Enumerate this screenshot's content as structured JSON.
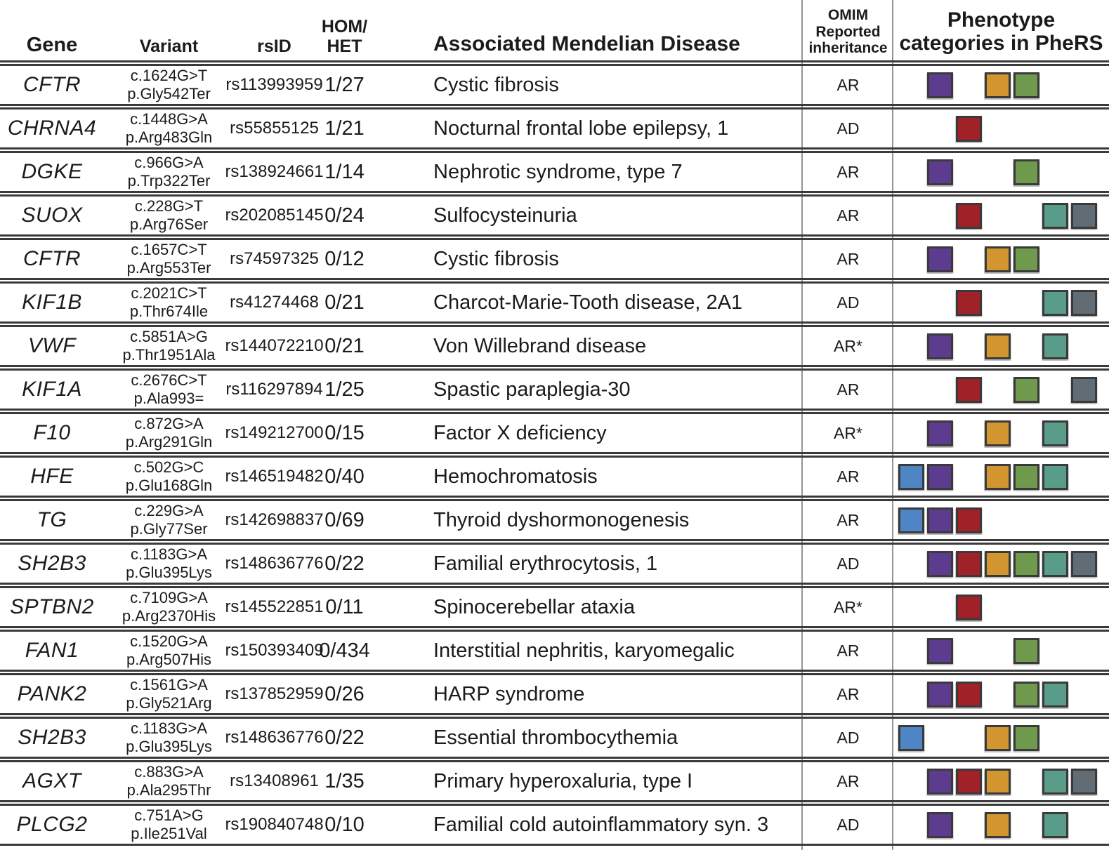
{
  "header": {
    "gene": "Gene",
    "variant": "Variant",
    "rsid": "rsID",
    "hom_het": "HOM/\nHET",
    "disease": "Associated Mendelian Disease",
    "omim": "OMIM\nReported\ninheritance",
    "phers": "Phenotype\ncategories in PheRS"
  },
  "category_slots": [
    "blue",
    "purple",
    "red",
    "orange",
    "green",
    "teal",
    "gray"
  ],
  "colors": {
    "blue": "#4f85c5",
    "purple": "#5d3b8e",
    "red": "#a02228",
    "orange": "#d2952f",
    "green": "#6f9a4e",
    "teal": "#5a9c8a",
    "gray": "#626c75",
    "row_border": "#3a3a3a",
    "divider": "#949494",
    "square_border": "#3a3a3a"
  },
  "rows": [
    {
      "gene": "CFTR",
      "variant_cdna": "c.1624G>T",
      "variant_protein": "p.Gly542Ter",
      "rsid": "rs113993959",
      "hom_het": "1/27",
      "disease": "Cystic fibrosis",
      "inheritance": "AR",
      "categories": [
        "purple",
        "orange",
        "green"
      ]
    },
    {
      "gene": "CHRNA4",
      "variant_cdna": "c.1448G>A",
      "variant_protein": "p.Arg483Gln",
      "rsid": "rs55855125",
      "hom_het": "1/21",
      "disease": "Nocturnal frontal lobe epilepsy, 1",
      "inheritance": "AD",
      "categories": [
        "red"
      ]
    },
    {
      "gene": "DGKE",
      "variant_cdna": "c.966G>A",
      "variant_protein": "p.Trp322Ter",
      "rsid": "rs138924661",
      "hom_het": "1/14",
      "disease": "Nephrotic syndrome, type 7",
      "inheritance": "AR",
      "categories": [
        "purple",
        "green"
      ]
    },
    {
      "gene": "SUOX",
      "variant_cdna": "c.228G>T",
      "variant_protein": "p.Arg76Ser",
      "rsid": "rs202085145",
      "hom_het": "0/24",
      "disease": "Sulfocysteinuria",
      "inheritance": "AR",
      "categories": [
        "red",
        "teal",
        "gray"
      ]
    },
    {
      "gene": "CFTR",
      "variant_cdna": "c.1657C>T",
      "variant_protein": "p.Arg553Ter",
      "rsid": "rs74597325",
      "hom_het": "0/12",
      "disease": "Cystic fibrosis",
      "inheritance": "AR",
      "categories": [
        "purple",
        "orange",
        "green"
      ]
    },
    {
      "gene": "KIF1B",
      "variant_cdna": "c.2021C>T",
      "variant_protein": "p.Thr674Ile",
      "rsid": "rs41274468",
      "hom_het": "0/21",
      "disease": "Charcot-Marie-Tooth disease, 2A1",
      "inheritance": "AD",
      "categories": [
        "red",
        "teal",
        "gray"
      ]
    },
    {
      "gene": "VWF",
      "variant_cdna": "c.5851A>G",
      "variant_protein": "p.Thr1951Ala",
      "rsid": "rs144072210",
      "hom_het": "0/21",
      "disease": "Von Willebrand disease",
      "inheritance": "AR*",
      "categories": [
        "purple",
        "orange",
        "teal"
      ]
    },
    {
      "gene": "KIF1A",
      "variant_cdna": "c.2676C>T",
      "variant_protein": "p.Ala993=",
      "rsid": "rs116297894",
      "hom_het": "1/25",
      "disease": "Spastic paraplegia-30",
      "inheritance": "AR",
      "categories": [
        "red",
        "green",
        "gray"
      ]
    },
    {
      "gene": "F10",
      "variant_cdna": "c.872G>A",
      "variant_protein": "p.Arg291Gln",
      "rsid": "rs149212700",
      "hom_het": "0/15",
      "disease": "Factor X deficiency",
      "inheritance": "AR*",
      "categories": [
        "purple",
        "orange",
        "teal"
      ]
    },
    {
      "gene": "HFE",
      "variant_cdna": "c.502G>C",
      "variant_protein": "p.Glu168Gln",
      "rsid": "rs146519482",
      "hom_het": "0/40",
      "disease": "Hemochromatosis",
      "inheritance": "AR",
      "categories": [
        "blue",
        "purple",
        "orange",
        "green",
        "teal"
      ]
    },
    {
      "gene": "TG",
      "variant_cdna": "c.229G>A",
      "variant_protein": "p.Gly77Ser",
      "rsid": "rs142698837",
      "hom_het": "0/69",
      "disease": "Thyroid dyshormonogenesis",
      "inheritance": "AR",
      "categories": [
        "blue",
        "purple",
        "red"
      ]
    },
    {
      "gene": "SH2B3",
      "variant_cdna": "c.1183G>A",
      "variant_protein": "p.Glu395Lys",
      "rsid": "rs148636776",
      "hom_het": "0/22",
      "disease": "Familial erythrocytosis, 1",
      "inheritance": "AD",
      "categories": [
        "purple",
        "red",
        "orange",
        "green",
        "teal",
        "gray"
      ]
    },
    {
      "gene": "SPTBN2",
      "variant_cdna": "c.7109G>A",
      "variant_protein": "p.Arg2370His",
      "rsid": "rs145522851",
      "hom_het": "0/11",
      "disease": "Spinocerebellar ataxia",
      "inheritance": "AR*",
      "categories": [
        "red"
      ]
    },
    {
      "gene": "FAN1",
      "variant_cdna": "c.1520G>A",
      "variant_protein": "p.Arg507His",
      "rsid": "rs150393409",
      "hom_het": "0/434",
      "disease": "Interstitial nephritis, karyomegalic",
      "inheritance": "AR",
      "categories": [
        "purple",
        "green"
      ]
    },
    {
      "gene": "PANK2",
      "variant_cdna": "c.1561G>A",
      "variant_protein": "p.Gly521Arg",
      "rsid": "rs137852959",
      "hom_het": "0/26",
      "disease": "HARP syndrome",
      "inheritance": "AR",
      "categories": [
        "purple",
        "red",
        "green",
        "teal"
      ]
    },
    {
      "gene": "SH2B3",
      "variant_cdna": "c.1183G>A",
      "variant_protein": "p.Glu395Lys",
      "rsid": "rs148636776",
      "hom_het": "0/22",
      "disease": "Essential thrombocythemia",
      "inheritance": "AD",
      "categories": [
        "blue",
        "orange",
        "green"
      ]
    },
    {
      "gene": "AGXT",
      "variant_cdna": "c.883G>A",
      "variant_protein": "p.Ala295Thr",
      "rsid": "rs13408961",
      "hom_het": "1/35",
      "disease": "Primary hyperoxaluria, type I",
      "inheritance": "AR",
      "categories": [
        "purple",
        "red",
        "orange",
        "teal",
        "gray"
      ]
    },
    {
      "gene": "PLCG2",
      "variant_cdna": "c.751A>G",
      "variant_protein": "p.Ile251Val",
      "rsid": "rs190840748",
      "hom_het": "0/10",
      "disease": "Familial cold autoinflammatory syn. 3",
      "inheritance": "AD",
      "categories": [
        "purple",
        "orange",
        "teal"
      ]
    }
  ]
}
